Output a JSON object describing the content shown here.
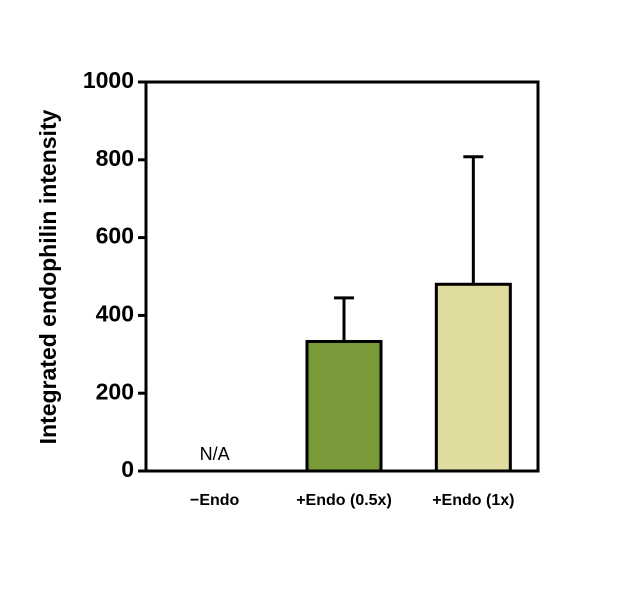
{
  "chart_data": {
    "type": "bar",
    "y_label": "Integrated endophilin intensity",
    "categories": [
      "−Endo",
      "+Endo (0.5x)",
      "+Endo (1x)"
    ],
    "values": [
      null,
      333,
      480
    ],
    "value_labels": [
      "N/A",
      null,
      null
    ],
    "errors": [
      null,
      112,
      328
    ],
    "colors": [
      "#7a9a3a",
      "#7a9a3a",
      "#e0dca0"
    ],
    "ylim": [
      0,
      1000
    ],
    "yticks": [
      0,
      200,
      400,
      600,
      800,
      1000
    ]
  }
}
